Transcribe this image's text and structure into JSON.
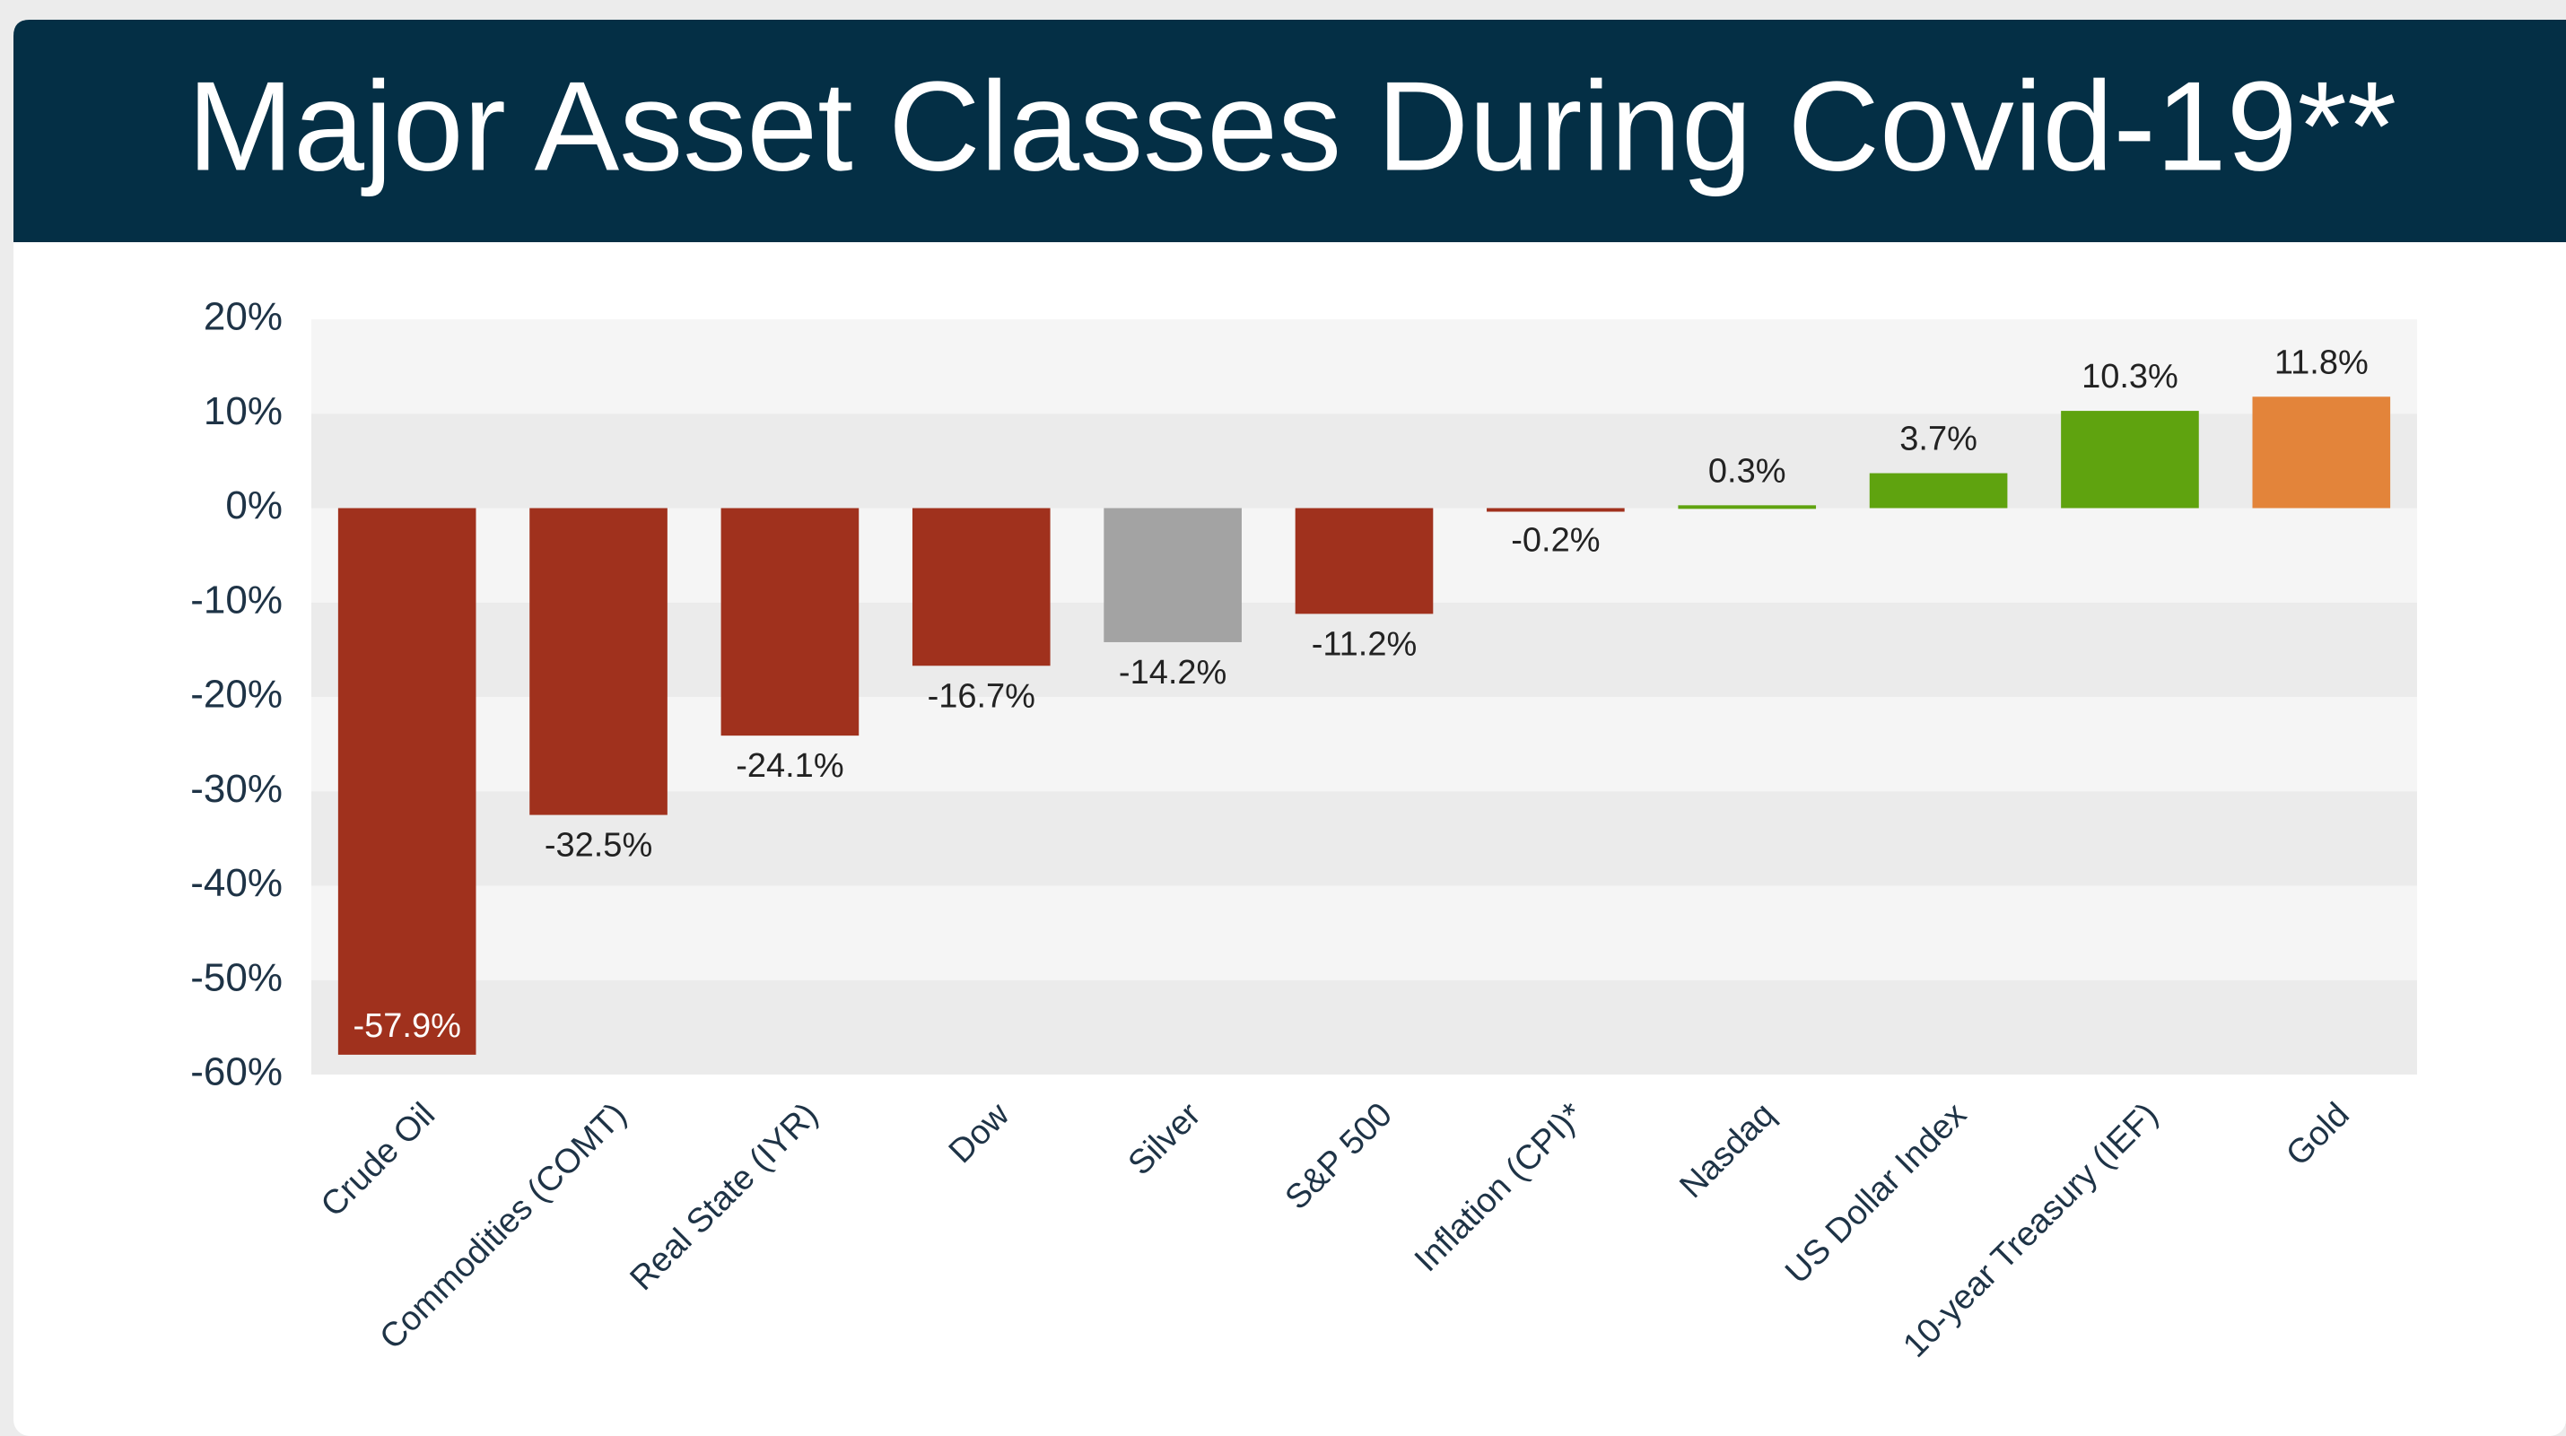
{
  "chart_data": {
    "type": "bar",
    "title": "Major Asset Classes During Covid-19**",
    "categories": [
      "Crude Oil",
      "Commodities (COMT)",
      "Real State (IYR)",
      "Dow",
      "Silver",
      "S&P 500",
      "Inflation (CPI)*",
      "Nasdaq",
      "US Dollar Index",
      "10-year Treasury (IEF)",
      "Gold"
    ],
    "values": [
      -57.9,
      -32.5,
      -24.1,
      -16.7,
      -14.2,
      -11.2,
      -0.2,
      0.3,
      3.7,
      10.3,
      11.8
    ],
    "value_labels": [
      "-57.9%",
      "-32.5%",
      "-24.1%",
      "-16.7%",
      "-14.2%",
      "-11.2%",
      "-0.2%",
      "0.3%",
      "3.7%",
      "10.3%",
      "11.8%"
    ],
    "colors": [
      "#a0311d",
      "#a0311d",
      "#a0311d",
      "#a0311d",
      "#a3a3a3",
      "#a0311d",
      "#a0311d",
      "#5fa30f",
      "#5fa30f",
      "#5fa30f",
      "#e3843a"
    ],
    "ylim": [
      -60,
      20
    ],
    "yticks": [
      {
        "value": 20,
        "label": "20%"
      },
      {
        "value": 10,
        "label": "10%"
      },
      {
        "value": 0,
        "label": "0%"
      },
      {
        "value": -10,
        "label": "-10%"
      },
      {
        "value": -20,
        "label": "-20%"
      },
      {
        "value": -30,
        "label": "-30%"
      },
      {
        "value": -40,
        "label": "-40%"
      },
      {
        "value": -50,
        "label": "-50%"
      },
      {
        "value": -60,
        "label": "-60%"
      }
    ]
  }
}
